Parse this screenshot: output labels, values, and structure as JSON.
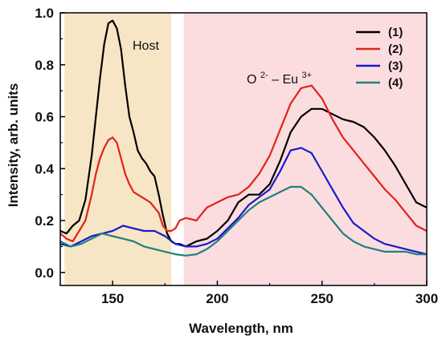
{
  "chart_data": {
    "type": "line",
    "xlabel": "Wavelength, nm",
    "ylabel": "Intensity, arb. units",
    "xlim": [
      125,
      300
    ],
    "ylim": [
      -0.05,
      1.0
    ],
    "xticks": [
      150,
      200,
      250,
      300
    ],
    "yticks": [
      0.0,
      0.2,
      0.4,
      0.6,
      0.8,
      1.0
    ],
    "xtick_labels": [
      "150",
      "200",
      "250",
      "300"
    ],
    "ytick_labels": [
      "0.0",
      "0.2",
      "0.4",
      "0.6",
      "0.8",
      "1.0"
    ],
    "grid": false,
    "legend_position": "top-right",
    "regions": [
      {
        "label": "Host",
        "x_range": [
          127,
          178
        ],
        "color": "#f6e6c6"
      },
      {
        "label": "",
        "x_range": [
          184,
          300
        ],
        "color": "#fbdde0"
      }
    ],
    "annotations": {
      "host": "Host",
      "o_base": "O",
      "o_sup": "2-",
      "dash": " – ",
      "eu_base": "Eu",
      "eu_sup": "3+"
    },
    "series": [
      {
        "name": "(1)",
        "color": "#000000",
        "x": [
          125,
          128,
          131,
          134,
          137,
          140,
          142,
          144,
          146,
          148,
          150,
          152,
          154,
          156,
          158,
          160,
          162,
          164,
          166,
          168,
          170,
          172,
          174,
          176,
          178,
          180,
          182,
          185,
          190,
          195,
          200,
          205,
          210,
          215,
          220,
          225,
          230,
          235,
          240,
          245,
          250,
          255,
          260,
          265,
          270,
          275,
          280,
          285,
          290,
          295,
          300
        ],
        "y": [
          0.16,
          0.15,
          0.18,
          0.2,
          0.28,
          0.45,
          0.6,
          0.75,
          0.88,
          0.96,
          0.97,
          0.94,
          0.86,
          0.72,
          0.6,
          0.54,
          0.47,
          0.44,
          0.42,
          0.39,
          0.37,
          0.3,
          0.22,
          0.15,
          0.12,
          0.11,
          0.11,
          0.1,
          0.12,
          0.13,
          0.16,
          0.2,
          0.27,
          0.3,
          0.3,
          0.34,
          0.43,
          0.54,
          0.6,
          0.63,
          0.63,
          0.61,
          0.59,
          0.58,
          0.56,
          0.52,
          0.47,
          0.41,
          0.34,
          0.27,
          0.25
        ]
      },
      {
        "name": "(2)",
        "color": "#e0231b",
        "x": [
          125,
          128,
          131,
          134,
          137,
          140,
          142,
          144,
          146,
          148,
          150,
          152,
          154,
          156,
          158,
          160,
          162,
          164,
          166,
          168,
          170,
          172,
          174,
          176,
          178,
          180,
          182,
          185,
          190,
          195,
          200,
          205,
          210,
          215,
          220,
          225,
          230,
          235,
          240,
          245,
          250,
          255,
          260,
          265,
          270,
          275,
          280,
          285,
          290,
          295,
          300
        ],
        "y": [
          0.15,
          0.13,
          0.12,
          0.16,
          0.2,
          0.3,
          0.38,
          0.44,
          0.48,
          0.51,
          0.52,
          0.5,
          0.44,
          0.38,
          0.34,
          0.31,
          0.3,
          0.29,
          0.28,
          0.27,
          0.25,
          0.23,
          0.18,
          0.16,
          0.16,
          0.17,
          0.2,
          0.21,
          0.2,
          0.25,
          0.27,
          0.29,
          0.3,
          0.33,
          0.38,
          0.45,
          0.55,
          0.65,
          0.71,
          0.72,
          0.67,
          0.59,
          0.52,
          0.47,
          0.42,
          0.37,
          0.32,
          0.28,
          0.23,
          0.18,
          0.16
        ]
      },
      {
        "name": "(3)",
        "color": "#1a1acc",
        "x": [
          125,
          130,
          135,
          140,
          145,
          150,
          155,
          160,
          165,
          170,
          175,
          180,
          185,
          190,
          195,
          200,
          205,
          210,
          215,
          220,
          225,
          230,
          235,
          240,
          245,
          250,
          255,
          260,
          265,
          270,
          275,
          280,
          285,
          290,
          295,
          300
        ],
        "y": [
          0.11,
          0.1,
          0.12,
          0.14,
          0.15,
          0.16,
          0.18,
          0.17,
          0.16,
          0.16,
          0.14,
          0.11,
          0.1,
          0.1,
          0.11,
          0.13,
          0.17,
          0.21,
          0.26,
          0.29,
          0.32,
          0.39,
          0.47,
          0.48,
          0.46,
          0.39,
          0.32,
          0.25,
          0.19,
          0.16,
          0.13,
          0.11,
          0.1,
          0.09,
          0.08,
          0.07
        ]
      },
      {
        "name": "(4)",
        "color": "#227f7f",
        "x": [
          125,
          130,
          135,
          140,
          145,
          150,
          155,
          160,
          165,
          170,
          175,
          180,
          185,
          190,
          195,
          200,
          205,
          210,
          215,
          220,
          225,
          230,
          235,
          240,
          245,
          250,
          255,
          260,
          265,
          270,
          275,
          280,
          285,
          290,
          295,
          300
        ],
        "y": [
          0.12,
          0.1,
          0.11,
          0.13,
          0.15,
          0.14,
          0.13,
          0.12,
          0.1,
          0.09,
          0.08,
          0.07,
          0.065,
          0.07,
          0.09,
          0.12,
          0.16,
          0.2,
          0.24,
          0.27,
          0.29,
          0.31,
          0.33,
          0.33,
          0.3,
          0.25,
          0.2,
          0.15,
          0.12,
          0.1,
          0.09,
          0.08,
          0.08,
          0.08,
          0.07,
          0.07
        ]
      }
    ]
  }
}
